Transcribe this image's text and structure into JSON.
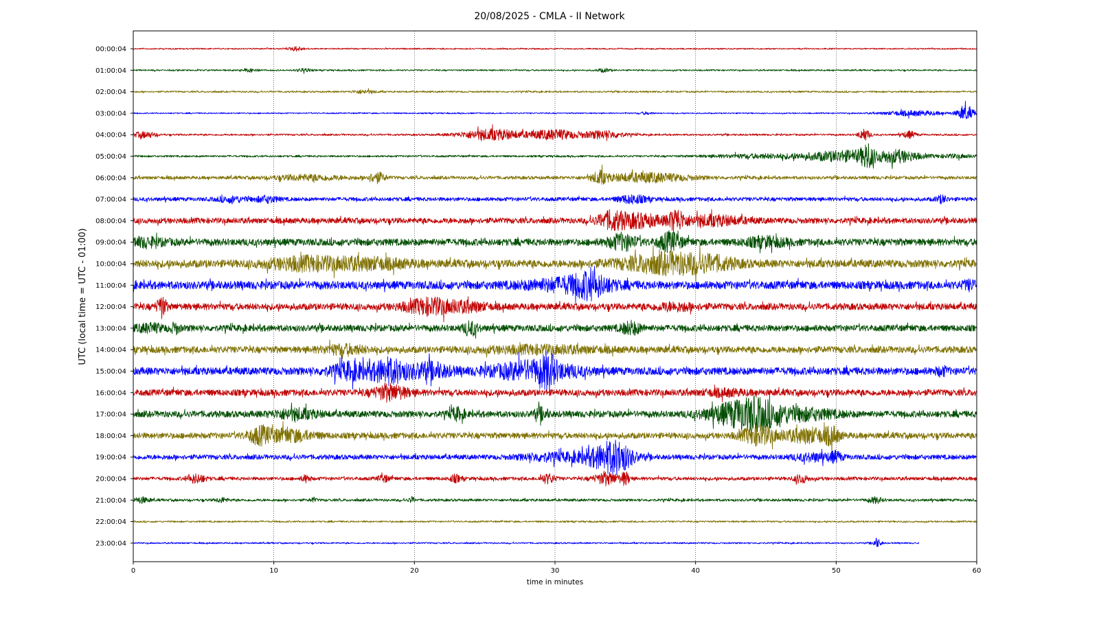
{
  "chart_data": {
    "type": "line",
    "title": "20/08/2025 - CMLA - II Network",
    "xlabel": "time in minutes",
    "ylabel": "UTC (local time = UTC - 01:00)",
    "xlim": [
      0,
      60
    ],
    "x_ticks": [
      "0",
      "10",
      "20",
      "30",
      "40",
      "50",
      "60"
    ],
    "grid": "vertical dotted",
    "colors": [
      "#c00000",
      "#004d00",
      "#7f7000",
      "#0000ff"
    ],
    "rows": [
      {
        "label": "00:00:04",
        "noise": 0.12,
        "end": 60,
        "events": [
          [
            11.6,
            0.5,
            0.4
          ]
        ]
      },
      {
        "label": "01:00:04",
        "noise": 0.14,
        "end": 60,
        "events": [
          [
            8.4,
            0.5,
            0.3
          ],
          [
            12.1,
            0.5,
            0.3
          ],
          [
            33.5,
            0.5,
            0.3
          ]
        ]
      },
      {
        "label": "02:00:04",
        "noise": 0.16,
        "end": 60,
        "events": [
          [
            16.4,
            0.8,
            0.3
          ]
        ]
      },
      {
        "label": "03:00:04",
        "noise": 0.12,
        "end": 60,
        "events": [
          [
            36.5,
            0.5,
            0.2
          ],
          [
            55.5,
            2.2,
            0.45
          ],
          [
            59.2,
            0.6,
            1.2
          ]
        ]
      },
      {
        "label": "04:00:04",
        "noise": 0.17,
        "end": 60,
        "events": [
          [
            0.8,
            0.8,
            0.55
          ],
          [
            25.5,
            2.2,
            1.0
          ],
          [
            30,
            1.8,
            0.9
          ],
          [
            33.5,
            1.4,
            0.7
          ],
          [
            52,
            0.4,
            1.0
          ],
          [
            55.2,
            0.5,
            0.6
          ]
        ]
      },
      {
        "label": "05:00:04",
        "noise": 0.18,
        "end": 60,
        "events": [
          [
            45,
            4,
            0.35
          ],
          [
            51,
            3,
            1.0
          ],
          [
            52.2,
            0.4,
            1.7
          ],
          [
            54.5,
            1.5,
            0.9
          ],
          [
            58.5,
            1.5,
            0.3
          ]
        ]
      },
      {
        "label": "06:00:04",
        "noise": 0.3,
        "end": 60,
        "events": [
          [
            12.5,
            2.5,
            0.45
          ],
          [
            17.3,
            0.6,
            0.9
          ],
          [
            33.2,
            0.5,
            1.0
          ],
          [
            36.5,
            3,
            0.8
          ]
        ]
      },
      {
        "label": "07:00:04",
        "noise": 0.36,
        "end": 60,
        "events": [
          [
            7,
            1,
            0.45
          ],
          [
            9.5,
            0.8,
            0.5
          ],
          [
            35.5,
            1.0,
            0.7
          ],
          [
            57.5,
            0.4,
            0.6
          ]
        ]
      },
      {
        "label": "08:00:04",
        "noise": 0.52,
        "end": 60,
        "events": [
          [
            34,
            1.0,
            1.4
          ],
          [
            36,
            1.5,
            1.1
          ],
          [
            38.6,
            0.5,
            1.8
          ],
          [
            41,
            2.5,
            0.8
          ]
        ]
      },
      {
        "label": "09:00:04",
        "noise": 0.65,
        "end": 60,
        "events": [
          [
            0.8,
            1.5,
            0.6
          ],
          [
            34.8,
            1.0,
            1.3
          ],
          [
            38.2,
            0.8,
            1.6
          ],
          [
            45,
            1.5,
            0.7
          ]
        ]
      },
      {
        "label": "10:00:04",
        "noise": 0.72,
        "end": 60,
        "events": [
          [
            12,
            2.5,
            0.9
          ],
          [
            16.5,
            3,
            0.8
          ],
          [
            37.8,
            3,
            1.6
          ],
          [
            41,
            2,
            0.8
          ]
        ]
      },
      {
        "label": "11:00:04",
        "noise": 0.75,
        "end": 60,
        "events": [
          [
            31,
            3,
            1.0
          ],
          [
            32.5,
            1.2,
            1.5
          ],
          [
            59.5,
            0.5,
            0.6
          ]
        ]
      },
      {
        "label": "12:00:04",
        "noise": 0.62,
        "end": 60,
        "events": [
          [
            2,
            0.3,
            1.8
          ],
          [
            21.2,
            1.8,
            1.3
          ],
          [
            24,
            1.2,
            0.6
          ],
          [
            38.5,
            1.5,
            0.5
          ]
        ]
      },
      {
        "label": "13:00:04",
        "noise": 0.6,
        "end": 60,
        "events": [
          [
            1.2,
            1,
            0.6
          ],
          [
            3,
            0.3,
            0.8
          ],
          [
            24,
            0.5,
            1.1
          ],
          [
            35.4,
            0.7,
            1.0
          ]
        ]
      },
      {
        "label": "14:00:04",
        "noise": 0.62,
        "end": 60,
        "events": [
          [
            15,
            1.5,
            0.7
          ],
          [
            29,
            4,
            0.5
          ]
        ]
      },
      {
        "label": "15:00:04",
        "noise": 0.7,
        "end": 60,
        "events": [
          [
            15.5,
            1.5,
            1.3
          ],
          [
            18.2,
            1.2,
            2.0
          ],
          [
            21,
            1.5,
            1.3
          ],
          [
            28.5,
            3,
            1.6
          ],
          [
            29.5,
            0.5,
            1.9
          ],
          [
            57.5,
            0.4,
            0.6
          ]
        ]
      },
      {
        "label": "16:00:04",
        "noise": 0.6,
        "end": 60,
        "events": [
          [
            18.3,
            1.2,
            1.2
          ],
          [
            42,
            1.5,
            0.4
          ]
        ]
      },
      {
        "label": "17:00:04",
        "noise": 0.6,
        "end": 60,
        "events": [
          [
            11.5,
            1.5,
            0.8
          ],
          [
            23,
            0.5,
            0.9
          ],
          [
            29,
            0.5,
            0.9
          ],
          [
            42.5,
            2,
            1.3
          ],
          [
            44.3,
            1.8,
            2.1
          ],
          [
            47.5,
            2.5,
            0.9
          ]
        ]
      },
      {
        "label": "18:00:04",
        "noise": 0.55,
        "end": 60,
        "events": [
          [
            9,
            0.8,
            1.3
          ],
          [
            11,
            1.8,
            1.0
          ],
          [
            44.5,
            1.2,
            1.6
          ],
          [
            48,
            1.6,
            1.2
          ],
          [
            49.7,
            0.5,
            1.2
          ]
        ]
      },
      {
        "label": "19:00:04",
        "noise": 0.45,
        "end": 60,
        "events": [
          [
            29.5,
            2,
            0.6
          ],
          [
            33.5,
            1.8,
            1.8
          ],
          [
            34.5,
            1.0,
            1.6
          ],
          [
            48.5,
            1.5,
            0.6
          ],
          [
            50,
            0.4,
            0.7
          ]
        ]
      },
      {
        "label": "20:00:04",
        "noise": 0.32,
        "end": 60,
        "events": [
          [
            4.5,
            0.6,
            0.8
          ],
          [
            12.3,
            0.3,
            0.6
          ],
          [
            17.8,
            0.4,
            0.6
          ],
          [
            22.9,
            0.4,
            0.6
          ],
          [
            29.5,
            0.5,
            0.8
          ],
          [
            33.7,
            0.9,
            1.0
          ],
          [
            35,
            0.3,
            1.1
          ],
          [
            47.5,
            0.5,
            0.7
          ]
        ]
      },
      {
        "label": "21:00:04",
        "noise": 0.24,
        "end": 60,
        "events": [
          [
            0.6,
            0.5,
            0.5
          ],
          [
            6.3,
            0.4,
            0.4
          ],
          [
            12.8,
            0.2,
            0.4
          ],
          [
            19.8,
            0.2,
            0.5
          ],
          [
            52.8,
            0.5,
            0.5
          ]
        ]
      },
      {
        "label": "22:00:04",
        "noise": 0.16,
        "end": 60,
        "events": []
      },
      {
        "label": "23:00:04",
        "noise": 0.14,
        "end": 55.9,
        "events": [
          [
            52.9,
            0.3,
            0.8
          ]
        ]
      }
    ]
  }
}
